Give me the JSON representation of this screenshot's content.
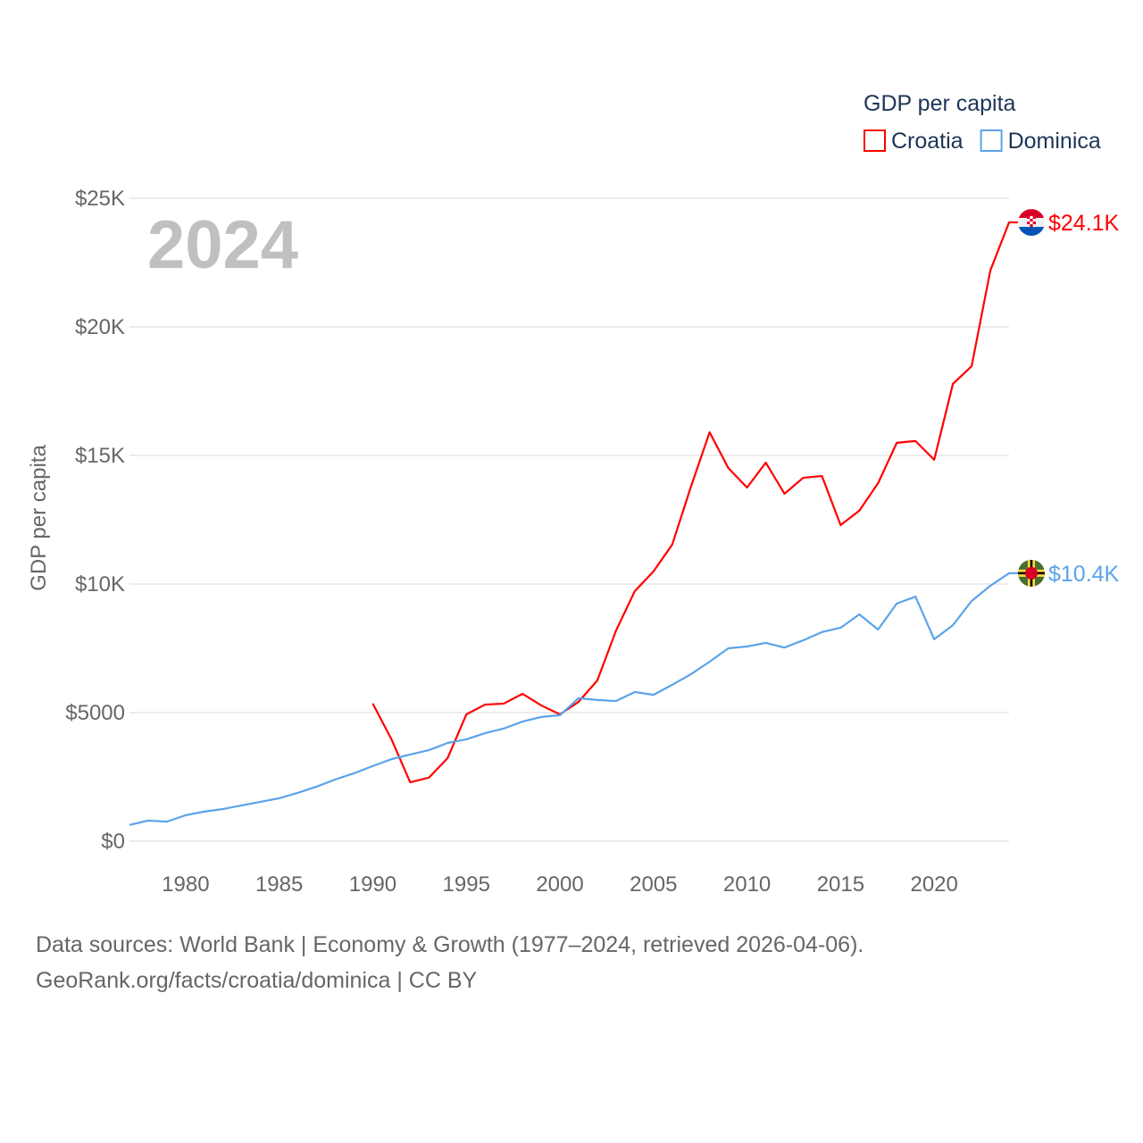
{
  "chart_data": {
    "type": "line",
    "title": "GDP per capita",
    "ylabel": "GDP per capita",
    "xlabel": "",
    "year_label": "2024",
    "xlim": [
      1977,
      2024
    ],
    "ylim": [
      0,
      25000
    ],
    "x_ticks": [
      1980,
      1985,
      1990,
      1995,
      2000,
      2005,
      2010,
      2015,
      2020
    ],
    "y_ticks": [
      0,
      5000,
      10000,
      15000,
      20000,
      25000
    ],
    "y_tick_labels": [
      "$0",
      "$5000",
      "$10K",
      "$15K",
      "$20K",
      "$25K"
    ],
    "grid": true,
    "legend_position": "top-right",
    "series": [
      {
        "name": "Croatia",
        "color": "#ff0000",
        "end_label": "$24.1K",
        "flag": "croatia-flag",
        "x": [
          1990,
          1991,
          1992,
          1993,
          1994,
          1995,
          1996,
          1997,
          1998,
          1999,
          2000,
          2001,
          2002,
          2003,
          2004,
          2005,
          2006,
          2007,
          2008,
          2009,
          2010,
          2011,
          2012,
          2013,
          2014,
          2015,
          2016,
          2017,
          2018,
          2019,
          2020,
          2021,
          2022,
          2023,
          2024
        ],
        "values": [
          5350,
          3960,
          2290,
          2470,
          3230,
          4930,
          5310,
          5350,
          5730,
          5280,
          4930,
          5420,
          6250,
          8190,
          9720,
          10490,
          11530,
          13780,
          15900,
          14510,
          13750,
          14720,
          13510,
          14130,
          14200,
          12290,
          12850,
          13920,
          15490,
          15560,
          14830,
          17780,
          18470,
          22190,
          24060
        ]
      },
      {
        "name": "Dominica",
        "color": "#5ba3ea",
        "end_label": "$10.4K",
        "flag": "dominica-flag",
        "x": [
          1977,
          1978,
          1979,
          1980,
          1981,
          1982,
          1983,
          1984,
          1985,
          1986,
          1987,
          1988,
          1989,
          1990,
          1991,
          1992,
          1993,
          1994,
          1995,
          1996,
          1997,
          1998,
          1999,
          2000,
          2001,
          2002,
          2003,
          2004,
          2005,
          2006,
          2007,
          2008,
          2009,
          2010,
          2011,
          2012,
          2013,
          2014,
          2015,
          2016,
          2017,
          2018,
          2019,
          2020,
          2021,
          2022,
          2023,
          2024
        ],
        "values": [
          630,
          800,
          760,
          1010,
          1150,
          1250,
          1390,
          1530,
          1670,
          1880,
          2120,
          2400,
          2640,
          2920,
          3190,
          3370,
          3540,
          3820,
          3960,
          4200,
          4380,
          4650,
          4830,
          4900,
          5560,
          5490,
          5450,
          5800,
          5690,
          6080,
          6490,
          6980,
          7500,
          7570,
          7710,
          7530,
          7810,
          8130,
          8300,
          8820,
          8230,
          9240,
          9510,
          7850,
          8400,
          9340,
          9930,
          10420
        ]
      }
    ]
  },
  "footer": {
    "line1": "Data sources: World Bank | Economy & Growth (1977–2024, retrieved 2026-04-06).",
    "line2": "GeoRank.org/facts/croatia/dominica | CC BY"
  }
}
